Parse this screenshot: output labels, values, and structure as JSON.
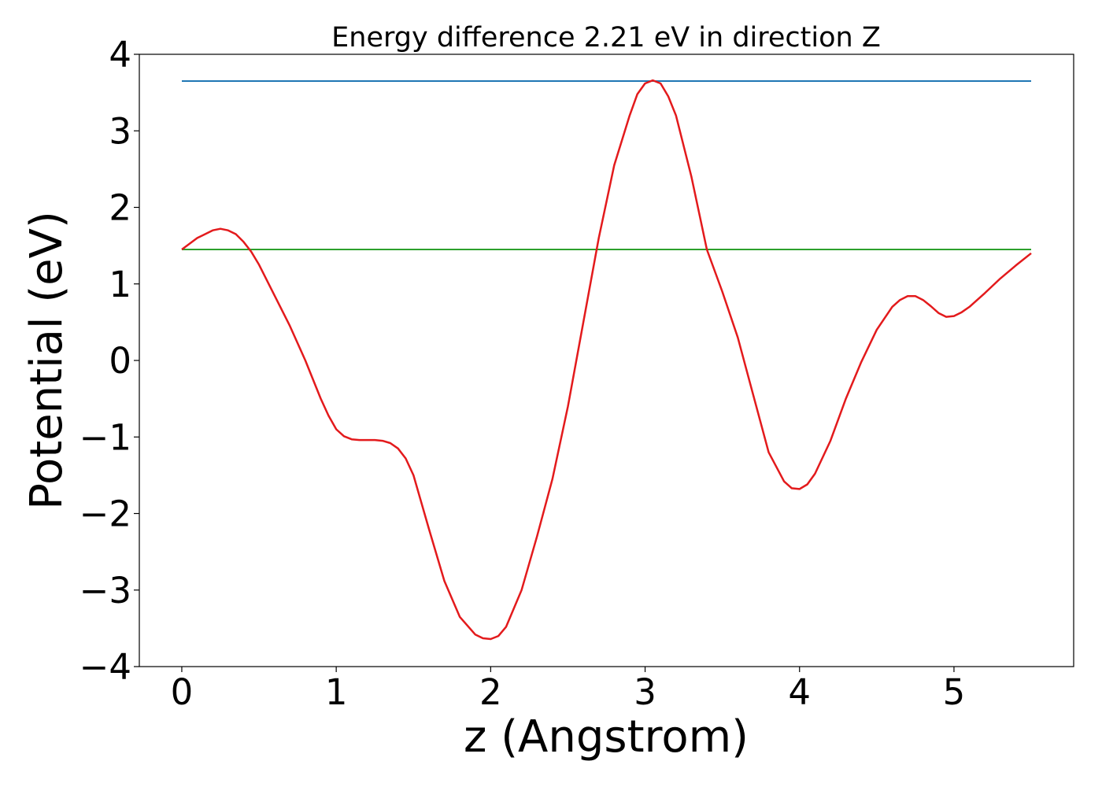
{
  "chart_data": {
    "type": "line",
    "title": "Energy difference 2.21 eV in direction Z",
    "xlabel": "z (Angstrom)",
    "ylabel": "Potential (eV)",
    "xlim": [
      -0.275,
      5.775
    ],
    "ylim": [
      -4,
      4
    ],
    "xticks": [
      0,
      1,
      2,
      3,
      4,
      5
    ],
    "xtick_labels": [
      "0",
      "1",
      "2",
      "3",
      "4",
      "5"
    ],
    "yticks": [
      -4,
      -3,
      -2,
      -1,
      0,
      1,
      2,
      3,
      4
    ],
    "ytick_labels": [
      "−4",
      "−3",
      "−2",
      "−1",
      "0",
      "1",
      "2",
      "3",
      "4"
    ],
    "grid": false,
    "series": [
      {
        "color": "#1f77b4",
        "x": [
          0,
          5.5
        ],
        "y": [
          3.65,
          3.65
        ]
      },
      {
        "color": "#2ca02c",
        "x": [
          0,
          5.5
        ],
        "y": [
          1.45,
          1.45
        ]
      },
      {
        "color": "#e31a1c",
        "x": [
          0,
          0.1,
          0.2,
          0.25,
          0.3,
          0.35,
          0.4,
          0.45,
          0.5,
          0.6,
          0.7,
          0.8,
          0.9,
          0.95,
          1.0,
          1.05,
          1.1,
          1.15,
          1.2,
          1.25,
          1.3,
          1.35,
          1.4,
          1.45,
          1.5,
          1.6,
          1.7,
          1.8,
          1.9,
          1.95,
          2.0,
          2.05,
          2.1,
          2.2,
          2.3,
          2.4,
          2.5,
          2.6,
          2.7,
          2.8,
          2.9,
          2.95,
          3.0,
          3.05,
          3.1,
          3.15,
          3.2,
          3.3,
          3.4,
          3.5,
          3.6,
          3.7,
          3.8,
          3.9,
          3.95,
          4.0,
          4.05,
          4.1,
          4.2,
          4.3,
          4.4,
          4.5,
          4.6,
          4.65,
          4.7,
          4.75,
          4.8,
          4.85,
          4.9,
          4.95,
          5.0,
          5.05,
          5.1,
          5.2,
          5.3,
          5.4,
          5.5
        ],
        "y": [
          1.45,
          1.6,
          1.7,
          1.72,
          1.7,
          1.65,
          1.55,
          1.42,
          1.25,
          0.85,
          0.45,
          0.0,
          -0.5,
          -0.72,
          -0.9,
          -0.99,
          -1.03,
          -1.04,
          -1.04,
          -1.04,
          -1.05,
          -1.08,
          -1.15,
          -1.28,
          -1.5,
          -2.2,
          -2.88,
          -3.35,
          -3.58,
          -3.63,
          -3.64,
          -3.6,
          -3.48,
          -3.0,
          -2.3,
          -1.55,
          -0.6,
          0.5,
          1.6,
          2.55,
          3.2,
          3.48,
          3.62,
          3.66,
          3.62,
          3.45,
          3.2,
          2.4,
          1.45,
          0.9,
          0.3,
          -0.45,
          -1.2,
          -1.58,
          -1.67,
          -1.68,
          -1.62,
          -1.48,
          -1.05,
          -0.5,
          -0.02,
          0.4,
          0.7,
          0.79,
          0.84,
          0.84,
          0.79,
          0.71,
          0.62,
          0.57,
          0.58,
          0.63,
          0.7,
          0.88,
          1.07,
          1.24,
          1.4
        ]
      }
    ]
  }
}
